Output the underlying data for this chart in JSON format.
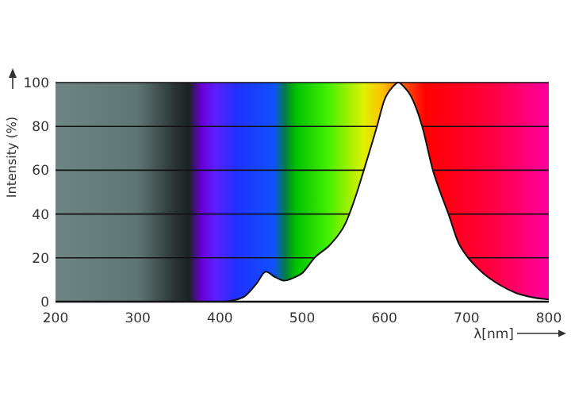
{
  "chart_data": {
    "type": "area",
    "xlabel": "λ[nm]",
    "ylabel": "Intensity (%)",
    "xlim": [
      200,
      800
    ],
    "ylim": [
      0,
      100
    ],
    "xticks": [
      200,
      300,
      400,
      500,
      600,
      700,
      800
    ],
    "yticks": [
      0,
      20,
      40,
      60,
      80,
      100
    ],
    "grid": "y",
    "series": [
      {
        "color": "#ffffff",
        "x": [
          350,
          403,
          428,
          444,
          456,
          466,
          478,
          490,
          500,
          515,
          534,
          553,
          565,
          575,
          591,
          600,
          610,
          617,
          624,
          632,
          646,
          659,
          668,
          678,
          690,
          700,
          709,
          720,
          740,
          760,
          780,
          800
        ],
        "values": [
          0,
          0,
          2,
          8,
          13.7,
          11.5,
          9.6,
          11,
          13,
          20,
          26,
          36,
          48,
          60,
          80,
          92,
          98,
          100,
          98,
          94,
          80,
          60,
          50,
          40,
          27,
          21,
          17,
          13,
          7.7,
          4,
          2,
          1
        ]
      }
    ]
  }
}
